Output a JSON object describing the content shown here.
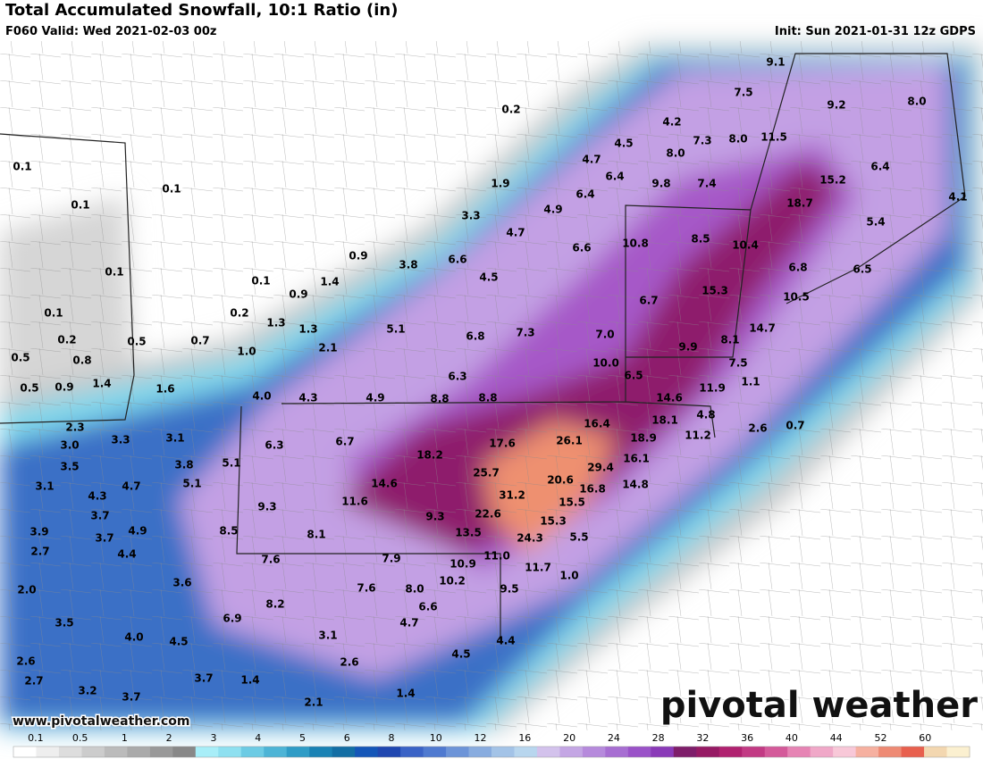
{
  "header": {
    "title": "Total Accumulated Snowfall, 10:1 Ratio (in)",
    "valid": "F060 Valid: Wed 2021-02-03 00z",
    "init": "Init: Sun 2021-01-31 12z GDPS"
  },
  "labels": [
    "9.1",
    "7.5",
    "9.2",
    "8.0",
    "0.2",
    "4.2",
    "7.3",
    "8.0",
    "11.5",
    "4.5",
    "8.0",
    "4.7",
    "6.4",
    "6.4",
    "9.8",
    "7.4",
    "15.2",
    "0.1",
    "0.1",
    "1.9",
    "6.4",
    "0.1",
    "18.7",
    "4.1",
    "4.9",
    "3.3",
    "10.8",
    "8.5",
    "10.4",
    "5.4",
    "4.7",
    "6.6",
    "0.9",
    "3.8",
    "6.6",
    "6.8",
    "6.5",
    "4.5",
    "0.1",
    "0.1",
    "1.4",
    "15.3",
    "10.5",
    "0.9",
    "6.7",
    "0.1",
    "0.2",
    "1.3",
    "1.3",
    "5.1",
    "6.8",
    "7.3",
    "7.0",
    "14.7",
    "8.1",
    "0.2",
    "0.5",
    "0.7",
    "2.1",
    "9.9",
    "0.5",
    "0.8",
    "1.0",
    "10.0",
    "7.5",
    "6.3",
    "6.5",
    "1.4",
    "1.6",
    "0.5",
    "0.9",
    "1.1",
    "11.9",
    "14.6",
    "4.0",
    "4.3",
    "4.9",
    "8.8",
    "8.8",
    "16.4",
    "18.1",
    "4.8",
    "0.7",
    "2.3",
    "2.6",
    "3.3",
    "3.1",
    "26.1",
    "18.9",
    "11.2",
    "3.0",
    "6.3",
    "6.7",
    "17.6",
    "18.2",
    "16.1",
    "3.8",
    "5.1",
    "3.5",
    "29.4",
    "25.7",
    "20.6",
    "14.8",
    "14.6",
    "16.8",
    "3.1",
    "4.7",
    "5.1",
    "31.2",
    "4.3",
    "11.6",
    "15.5",
    "9.3",
    "22.6",
    "3.7",
    "9.3",
    "15.3",
    "3.9",
    "4.9",
    "3.7",
    "8.5",
    "8.1",
    "13.5",
    "24.3",
    "5.5",
    "2.7",
    "4.4",
    "7.6",
    "7.9",
    "11.0",
    "10.9",
    "11.7",
    "3.6",
    "10.2",
    "1.0",
    "2.0",
    "7.6",
    "8.0",
    "9.5",
    "8.2",
    "6.6",
    "3.5",
    "6.9",
    "4.7",
    "4.0",
    "4.5",
    "3.1",
    "4.4",
    "4.5",
    "2.6",
    "2.6",
    "2.7",
    "3.7",
    "1.4",
    "3.2",
    "3.7",
    "1.4",
    "2.1"
  ],
  "watermark": "pivotal weather",
  "url": "www.pivotalweather.com",
  "colorbar": {
    "ticks": [
      0.1,
      0.5,
      1,
      2,
      3,
      4,
      5,
      6,
      8,
      10,
      12,
      16,
      20,
      24,
      28,
      32,
      36,
      40,
      44,
      52,
      60
    ],
    "colors": [
      "#ffffff",
      "#eeeeee",
      "#dddddd",
      "#cccccc",
      "#bbbbbb",
      "#aaaaaa",
      "#999999",
      "#888888",
      "#a8eef8",
      "#8ee0f0",
      "#6ccbe4",
      "#4db4d6",
      "#2f9cc6",
      "#1a82b4",
      "#136ea4",
      "#1456b8",
      "#1f47b0",
      "#3a63c6",
      "#4f7ad0",
      "#6c94d8",
      "#88acdf",
      "#a3c3e7",
      "#b8d6ee",
      "#d3c2ec",
      "#c4a6e4",
      "#b68adc",
      "#a76ed2",
      "#9a52c8",
      "#8a3ab8",
      "#7e1e6a",
      "#961a64",
      "#b02270",
      "#c23a84",
      "#d45a9a",
      "#e684b4",
      "#f0a8c8",
      "#f8c8d8",
      "#f6b0a0",
      "#ee8a74",
      "#e8604e",
      "#f3d7b0",
      "#fbf0d0"
    ]
  }
}
